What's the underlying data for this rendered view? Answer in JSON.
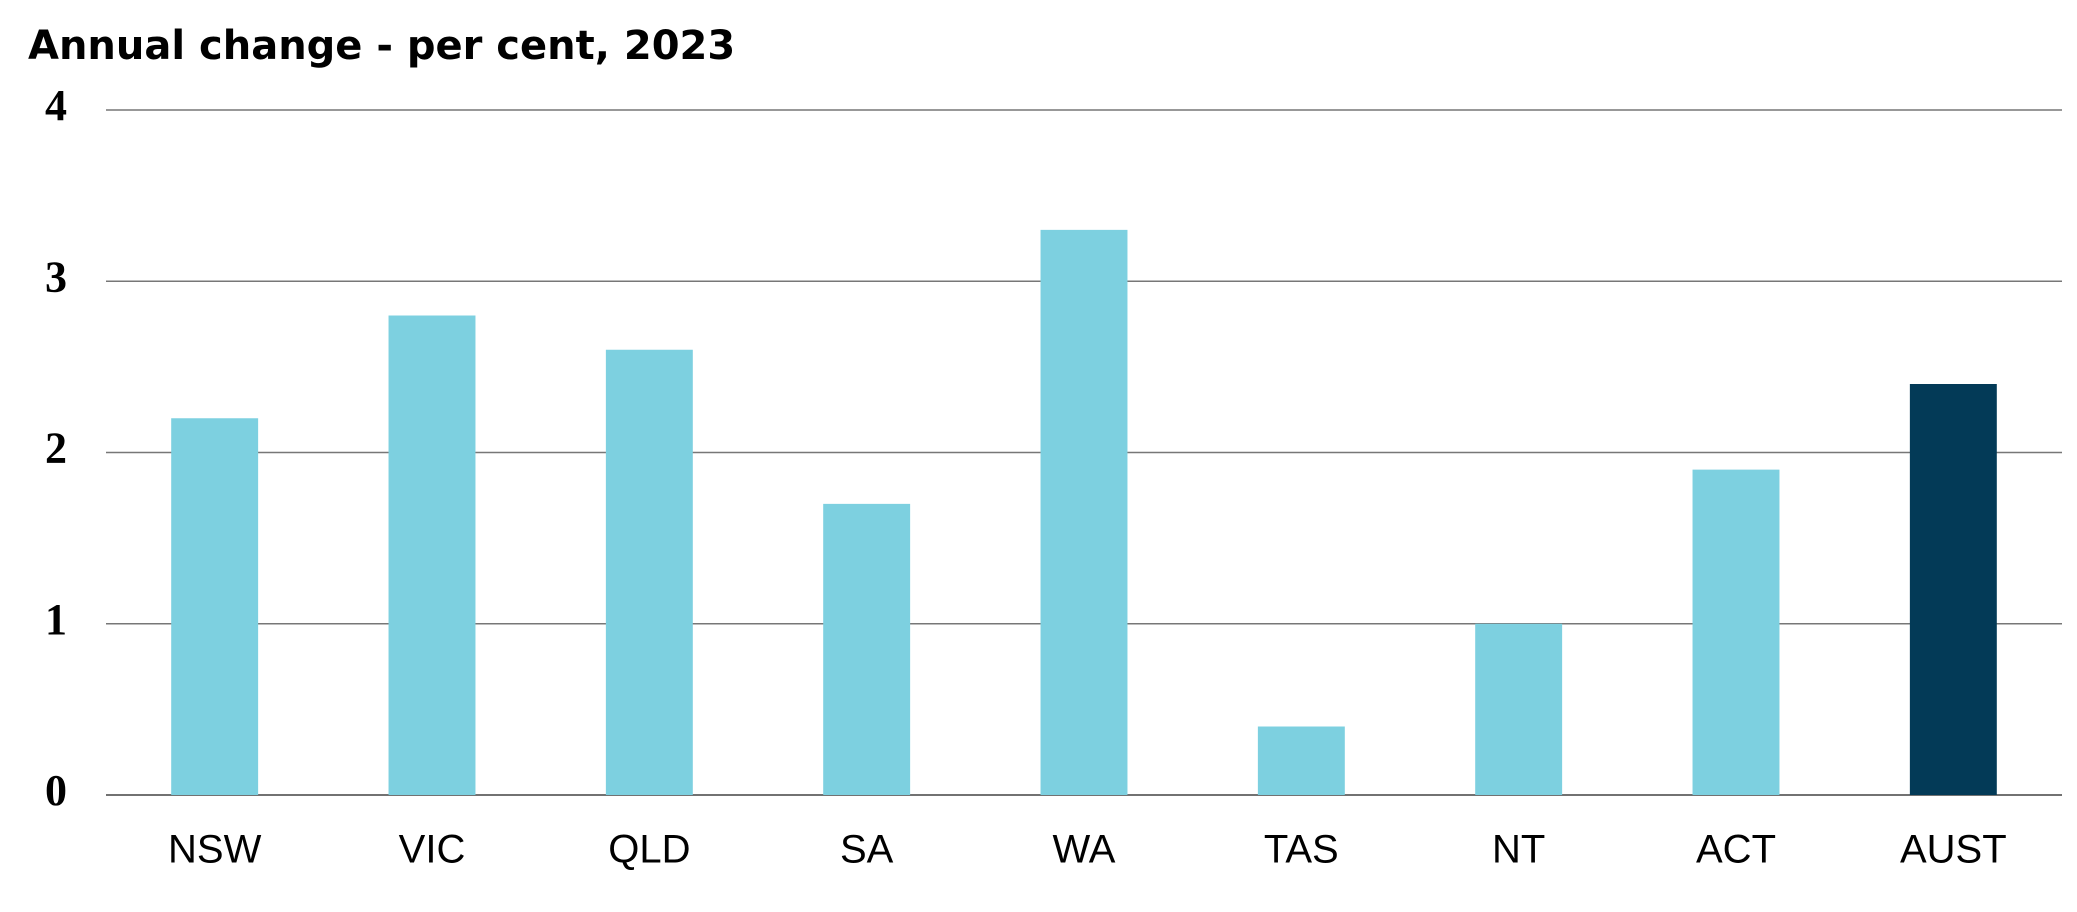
{
  "chart_data": {
    "type": "bar",
    "title": "Annual change - per cent, 2023",
    "categories": [
      "NSW",
      "VIC",
      "QLD",
      "SA",
      "WA",
      "TAS",
      "NT",
      "ACT",
      "AUST"
    ],
    "values": [
      2.2,
      2.8,
      2.6,
      1.7,
      3.3,
      0.4,
      1.0,
      1.9,
      2.4
    ],
    "colors": [
      "#7dd0e0",
      "#7dd0e0",
      "#7dd0e0",
      "#7dd0e0",
      "#7dd0e0",
      "#7dd0e0",
      "#7dd0e0",
      "#7dd0e0",
      "#033a57"
    ],
    "ylim": [
      0,
      4
    ],
    "yticks": [
      0,
      1,
      2,
      3,
      4
    ],
    "grid": true
  }
}
